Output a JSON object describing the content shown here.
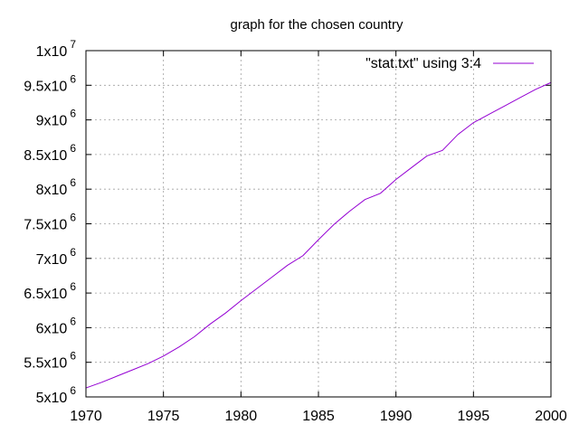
{
  "chart_data": {
    "type": "line",
    "title": "graph for the chosen country",
    "xlabel": "",
    "ylabel": "",
    "xlim": [
      1970,
      2000
    ],
    "ylim": [
      5000000,
      10000000
    ],
    "grid": true,
    "legend_position": "top-right",
    "x_ticks": [
      1970,
      1975,
      1980,
      1985,
      1990,
      1995,
      2000
    ],
    "x_tick_labels": [
      "1970",
      "1975",
      "1980",
      "1985",
      "1990",
      "1995",
      "2000"
    ],
    "y_ticks": [
      5000000,
      5500000,
      6000000,
      6500000,
      7000000,
      7500000,
      8000000,
      8500000,
      9000000,
      9500000,
      10000000
    ],
    "y_tick_labels": [
      {
        "mantissa": "5x10",
        "exp": "6"
      },
      {
        "mantissa": "5.5x10",
        "exp": "6"
      },
      {
        "mantissa": "6x10",
        "exp": "6"
      },
      {
        "mantissa": "6.5x10",
        "exp": "6"
      },
      {
        "mantissa": "7x10",
        "exp": "6"
      },
      {
        "mantissa": "7.5x10",
        "exp": "6"
      },
      {
        "mantissa": "8x10",
        "exp": "6"
      },
      {
        "mantissa": "8.5x10",
        "exp": "6"
      },
      {
        "mantissa": "9x10",
        "exp": "6"
      },
      {
        "mantissa": "9.5x10",
        "exp": "6"
      },
      {
        "mantissa": "1x10",
        "exp": "7"
      }
    ],
    "series": [
      {
        "name": "\"stat.txt\"  using 3:4",
        "color": "#9400d3",
        "x": [
          1970,
          1971,
          1972,
          1973,
          1974,
          1975,
          1976,
          1977,
          1978,
          1979,
          1980,
          1981,
          1982,
          1983,
          1984,
          1985,
          1986,
          1987,
          1988,
          1989,
          1990,
          1991,
          1992,
          1993,
          1994,
          1995,
          1996,
          1997,
          1998,
          1999,
          2000
        ],
        "y": [
          5130000,
          5210000,
          5300000,
          5390000,
          5480000,
          5590000,
          5720000,
          5870000,
          6050000,
          6210000,
          6390000,
          6560000,
          6730000,
          6900000,
          7040000,
          7270000,
          7490000,
          7680000,
          7850000,
          7940000,
          8140000,
          8310000,
          8480000,
          8560000,
          8790000,
          8960000,
          9080000,
          9200000,
          9320000,
          9440000,
          9540000
        ]
      }
    ]
  }
}
